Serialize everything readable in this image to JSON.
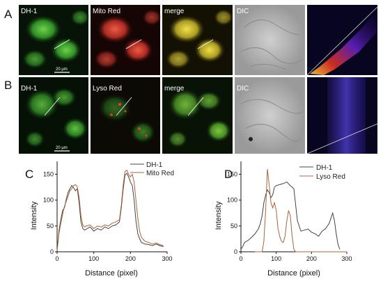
{
  "panels": {
    "A": {
      "letter": "A",
      "tiles": [
        "DH-1",
        "Mito Red",
        "merge",
        "DIC"
      ],
      "scale_bar": "20 μm"
    },
    "B": {
      "letter": "B",
      "tiles": [
        "DH-1",
        "Lyso Red",
        "merge",
        "DIC"
      ],
      "scale_bar": "20 μm"
    }
  },
  "colors": {
    "green_channel": "#3aa832",
    "red_channel": "#c8322a",
    "merge": "#c8b830",
    "dic": "#a9a9a9",
    "coloc_bg": "#07051f",
    "dh1_line": "#444444",
    "red_line": "#b0603a"
  },
  "chart_data": [
    {
      "panel": "C",
      "type": "line",
      "xlabel": "Distance (pixel)",
      "ylabel": "Intensity",
      "xlim": [
        0,
        300
      ],
      "ylim": [
        0,
        175
      ],
      "xticks": [
        0,
        100,
        200,
        300
      ],
      "yticks": [
        0,
        50,
        100,
        150
      ],
      "legend_placement": "top-right",
      "series": [
        {
          "name": "DH-1",
          "color": "#444444",
          "x": [
            0,
            5,
            10,
            15,
            20,
            25,
            30,
            35,
            40,
            45,
            50,
            55,
            60,
            65,
            70,
            75,
            80,
            90,
            100,
            110,
            120,
            130,
            140,
            150,
            160,
            170,
            175,
            180,
            185,
            190,
            195,
            200,
            205,
            210,
            215,
            220,
            225,
            230,
            240,
            250,
            260,
            270,
            280,
            290
          ],
          "y": [
            2,
            40,
            62,
            80,
            85,
            102,
            115,
            122,
            128,
            124,
            118,
            122,
            95,
            58,
            45,
            42,
            44,
            48,
            40,
            45,
            42,
            48,
            45,
            50,
            52,
            58,
            85,
            120,
            148,
            152,
            145,
            135,
            128,
            100,
            60,
            35,
            25,
            18,
            15,
            14,
            12,
            15,
            12,
            10
          ]
        },
        {
          "name": "Mito Red",
          "color": "#b0603a",
          "x": [
            0,
            5,
            10,
            15,
            20,
            25,
            30,
            35,
            40,
            45,
            50,
            55,
            60,
            65,
            70,
            75,
            80,
            90,
            100,
            110,
            120,
            130,
            140,
            150,
            160,
            170,
            175,
            180,
            185,
            190,
            195,
            200,
            205,
            210,
            215,
            220,
            225,
            230,
            240,
            250,
            260,
            270,
            280,
            290
          ],
          "y": [
            2,
            35,
            55,
            72,
            88,
            98,
            108,
            118,
            122,
            128,
            130,
            126,
            105,
            70,
            52,
            48,
            50,
            52,
            45,
            50,
            48,
            52,
            50,
            55,
            58,
            62,
            90,
            128,
            155,
            158,
            150,
            145,
            150,
            135,
            100,
            65,
            40,
            28,
            20,
            18,
            15,
            17,
            14,
            12
          ]
        }
      ]
    },
    {
      "panel": "D",
      "type": "line",
      "xlabel": "Distance (pixel)",
      "ylabel": "Intensity",
      "xlim": [
        0,
        300
      ],
      "ylim": [
        0,
        175
      ],
      "xticks": [
        0,
        100,
        200,
        300
      ],
      "yticks": [
        0,
        50,
        100,
        150
      ],
      "legend_placement": "top-right",
      "series": [
        {
          "name": "DH-1",
          "color": "#444444",
          "x": [
            0,
            5,
            10,
            20,
            30,
            40,
            50,
            55,
            60,
            65,
            70,
            75,
            80,
            85,
            90,
            95,
            100,
            110,
            120,
            130,
            140,
            150,
            160,
            170,
            180,
            190,
            200,
            210,
            220,
            230,
            240,
            250,
            255,
            260,
            265,
            270,
            275,
            280
          ],
          "y": [
            5,
            10,
            18,
            22,
            28,
            35,
            45,
            55,
            70,
            95,
            110,
            120,
            115,
            105,
            110,
            125,
            128,
            130,
            132,
            135,
            128,
            122,
            60,
            40,
            42,
            44,
            38,
            35,
            30,
            40,
            45,
            55,
            65,
            75,
            60,
            35,
            15,
            5
          ]
        },
        {
          "name": "Lyso Red",
          "color": "#b0603a",
          "x": [
            40,
            60,
            65,
            70,
            75,
            80,
            85,
            90,
            95,
            100,
            105,
            110,
            115,
            120,
            125,
            130,
            135,
            140,
            145,
            150,
            155,
            160,
            300
          ],
          "y": [
            0,
            0,
            20,
            80,
            160,
            130,
            95,
            85,
            95,
            80,
            45,
            30,
            20,
            18,
            30,
            60,
            80,
            70,
            30,
            5,
            0,
            0,
            0
          ]
        }
      ]
    }
  ]
}
